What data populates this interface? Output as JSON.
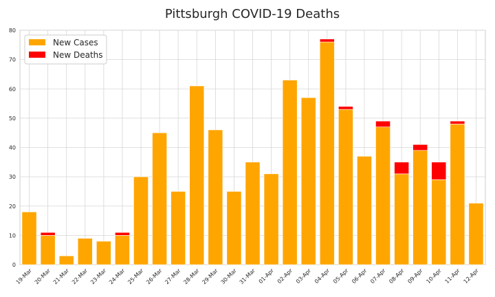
{
  "chart_data": {
    "type": "bar",
    "stacked": true,
    "title": "Pittsburgh COVID-19 Deaths",
    "xlabel": "",
    "ylabel": "",
    "ylim": [
      0,
      80
    ],
    "yticks": [
      "0",
      "10",
      "20",
      "30",
      "40",
      "50",
      "60",
      "70",
      "80"
    ],
    "grid": true,
    "legend_position": "top-left",
    "categories": [
      "19-Mar",
      "20-Mar",
      "21-Mar",
      "22-Mar",
      "23-Mar",
      "24-Mar",
      "25-Mar",
      "26-Mar",
      "27-Mar",
      "28-Mar",
      "29-Mar",
      "30-Mar",
      "31-Mar",
      "01-Apr",
      "02-Apr",
      "03-Apr",
      "04-Apr",
      "05-Apr",
      "06-Apr",
      "07-Apr",
      "08-Apr",
      "09-Apr",
      "10-Apr",
      "11-Apr",
      "12-Apr"
    ],
    "series": [
      {
        "name": "New Cases",
        "color": "#ffa500",
        "values": [
          18,
          10,
          3,
          9,
          8,
          10,
          30,
          45,
          25,
          61,
          46,
          25,
          35,
          31,
          63,
          57,
          76,
          53,
          37,
          47,
          31,
          39,
          29,
          48,
          21
        ]
      },
      {
        "name": "New Deaths",
        "color": "#ff0000",
        "values": [
          0,
          1,
          0,
          0,
          0,
          1,
          0,
          0,
          0,
          0,
          0,
          0,
          0,
          0,
          0,
          0,
          1,
          1,
          0,
          2,
          4,
          2,
          6,
          1,
          0
        ]
      }
    ]
  }
}
